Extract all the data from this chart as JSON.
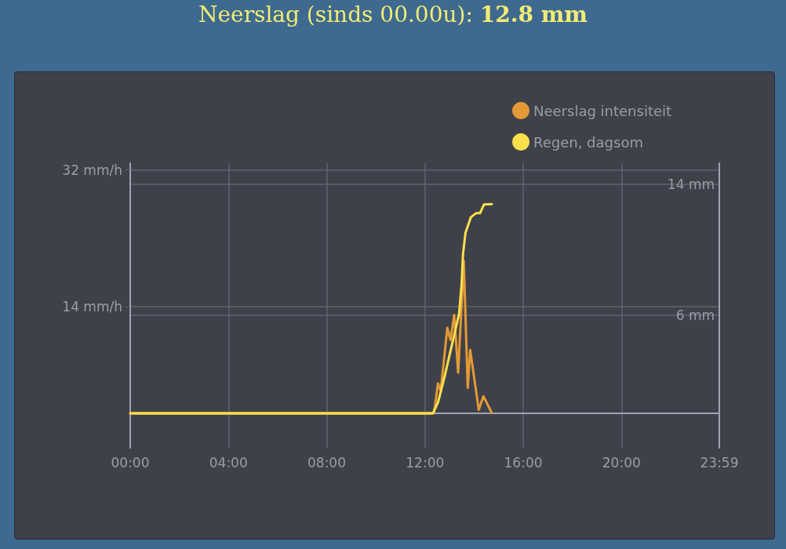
{
  "chart_data": {
    "type": "line",
    "title": "Neerslag (sinds 00.00u): 12.8 mm",
    "xlim": [
      0,
      23.983
    ],
    "xticks": [
      {
        "value": 0,
        "label": "00:00"
      },
      {
        "value": 4,
        "label": "04:00"
      },
      {
        "value": 8,
        "label": "08:00"
      },
      {
        "value": 12,
        "label": "12:00"
      },
      {
        "value": 16,
        "label": "16:00"
      },
      {
        "value": 20,
        "label": "20:00"
      },
      {
        "value": 23.983,
        "label": "23:59"
      }
    ],
    "ylim": [
      -4.6,
      32.9
    ],
    "yticks": [
      {
        "value": 14,
        "label": "14 mm/h"
      },
      {
        "value": 32,
        "label": "32 mm/h"
      }
    ],
    "y2lim": [
      -2.1,
      15.3
    ],
    "y2ticks": [
      {
        "value": 6,
        "label": "6 mm"
      },
      {
        "value": 14,
        "label": "14 mm"
      }
    ],
    "grid": true,
    "legend": "top right",
    "series": [
      {
        "name": "Neerslag intensiteit",
        "color": "#e39a35",
        "x": [
          0,
          12.37,
          12.53,
          12.64,
          12.91,
          13.04,
          13.19,
          13.35,
          13.58,
          13.74,
          13.84,
          14.19,
          14.38,
          14.72
        ],
        "values": [
          0,
          0,
          3.9,
          2.9,
          11.2,
          9.6,
          12.9,
          5.3,
          20,
          3.3,
          8.3,
          0.4,
          2.2,
          0
        ]
      },
      {
        "name": "Regen, dagsom",
        "color": "#fbe04c",
        "axis": "y2",
        "x": [
          0,
          12.32,
          12.53,
          12.8,
          13.12,
          13.39,
          13.49,
          13.55,
          13.65,
          13.87,
          14.08,
          14.24,
          14.4,
          14.72
        ],
        "values": [
          0,
          0,
          0.67,
          2.27,
          4.34,
          6.1,
          7.86,
          9.77,
          11.05,
          12.0,
          12.24,
          12.24,
          12.77,
          12.8
        ]
      }
    ]
  }
}
